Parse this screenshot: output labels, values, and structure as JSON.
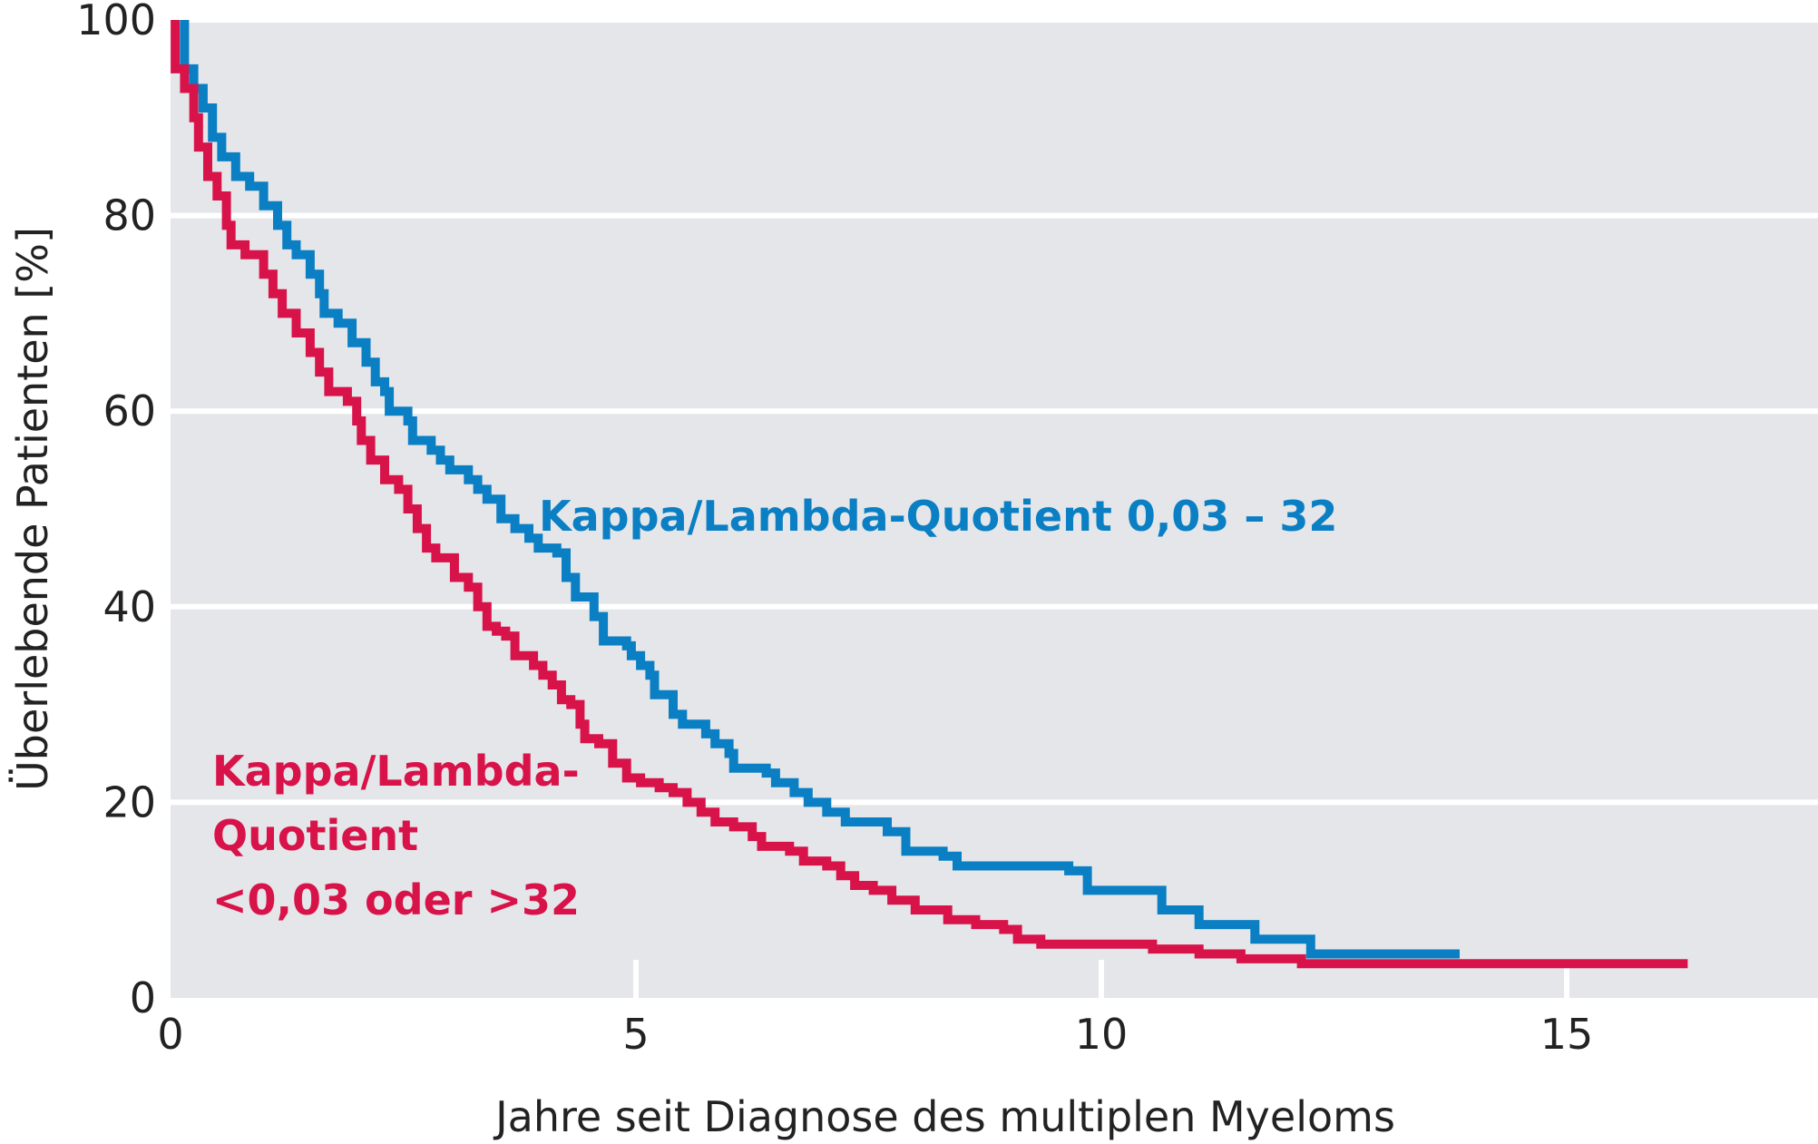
{
  "chart_data": {
    "type": "line",
    "step": true,
    "xlabel": "Jahre seit Diagnose des multiplen Myeloms",
    "ylabel": "Überlebende Patienten [%]",
    "xlim": [
      0,
      17.7
    ],
    "ylim": [
      0,
      100
    ],
    "xticks": [
      0,
      5,
      10,
      15
    ],
    "yticks": [
      0,
      20,
      40,
      60,
      80,
      100
    ],
    "grid": "horizontal",
    "background": "#e5e6e9",
    "series": [
      {
        "label_lines": [
          "Kappa/Lambda-Quotient 0,03 – 32"
        ],
        "color": "#0a7fc4",
        "points": [
          [
            0.15,
            95
          ],
          [
            0.25,
            93
          ],
          [
            0.35,
            91
          ],
          [
            0.45,
            88
          ],
          [
            0.55,
            86
          ],
          [
            0.7,
            84
          ],
          [
            0.85,
            83
          ],
          [
            1.0,
            81
          ],
          [
            1.15,
            79
          ],
          [
            1.25,
            77
          ],
          [
            1.35,
            76
          ],
          [
            1.5,
            74
          ],
          [
            1.6,
            72
          ],
          [
            1.65,
            70
          ],
          [
            1.8,
            69
          ],
          [
            1.95,
            67
          ],
          [
            2.1,
            65
          ],
          [
            2.2,
            63
          ],
          [
            2.3,
            62
          ],
          [
            2.35,
            60
          ],
          [
            2.55,
            59
          ],
          [
            2.6,
            57
          ],
          [
            2.8,
            56
          ],
          [
            2.9,
            55
          ],
          [
            3.0,
            54
          ],
          [
            3.2,
            53
          ],
          [
            3.3,
            52
          ],
          [
            3.4,
            51
          ],
          [
            3.55,
            49
          ],
          [
            3.7,
            48
          ],
          [
            3.85,
            47
          ],
          [
            3.95,
            46
          ],
          [
            4.15,
            45.5
          ],
          [
            4.25,
            43
          ],
          [
            4.35,
            41
          ],
          [
            4.55,
            39
          ],
          [
            4.65,
            36.5
          ],
          [
            4.9,
            36
          ],
          [
            4.95,
            35
          ],
          [
            5.05,
            34
          ],
          [
            5.15,
            33
          ],
          [
            5.2,
            31
          ],
          [
            5.4,
            29
          ],
          [
            5.5,
            28
          ],
          [
            5.75,
            27
          ],
          [
            5.85,
            26
          ],
          [
            6.0,
            25
          ],
          [
            6.05,
            23.5
          ],
          [
            6.4,
            23
          ],
          [
            6.5,
            22
          ],
          [
            6.7,
            21
          ],
          [
            6.85,
            20
          ],
          [
            7.05,
            19
          ],
          [
            7.25,
            18
          ],
          [
            7.7,
            17
          ],
          [
            7.9,
            15
          ],
          [
            8.3,
            14.5
          ],
          [
            8.45,
            13.5
          ],
          [
            9.65,
            13
          ],
          [
            9.85,
            11
          ],
          [
            10.65,
            9
          ],
          [
            11.05,
            7.5
          ],
          [
            11.65,
            6
          ],
          [
            12.25,
            4.5
          ],
          [
            13.85,
            4.5
          ]
        ]
      },
      {
        "label_lines": [
          "Kappa/Lambda-",
          "Quotient",
          "<0,03 oder >32"
        ],
        "color": "#d8134a",
        "points": [
          [
            0.05,
            95
          ],
          [
            0.15,
            93
          ],
          [
            0.25,
            90
          ],
          [
            0.3,
            87
          ],
          [
            0.4,
            84
          ],
          [
            0.5,
            82
          ],
          [
            0.6,
            79
          ],
          [
            0.65,
            77
          ],
          [
            0.8,
            76
          ],
          [
            1.0,
            74
          ],
          [
            1.1,
            72
          ],
          [
            1.2,
            70
          ],
          [
            1.35,
            68
          ],
          [
            1.5,
            66
          ],
          [
            1.6,
            64
          ],
          [
            1.7,
            62
          ],
          [
            1.9,
            61
          ],
          [
            2.0,
            59
          ],
          [
            2.05,
            57
          ],
          [
            2.15,
            55
          ],
          [
            2.3,
            53
          ],
          [
            2.45,
            52
          ],
          [
            2.55,
            50
          ],
          [
            2.65,
            48
          ],
          [
            2.75,
            46
          ],
          [
            2.85,
            45
          ],
          [
            3.05,
            43
          ],
          [
            3.2,
            42
          ],
          [
            3.3,
            40
          ],
          [
            3.4,
            38
          ],
          [
            3.5,
            37.5
          ],
          [
            3.6,
            37
          ],
          [
            3.7,
            35
          ],
          [
            3.9,
            34
          ],
          [
            4.0,
            33
          ],
          [
            4.1,
            32
          ],
          [
            4.2,
            30.5
          ],
          [
            4.3,
            30
          ],
          [
            4.4,
            28
          ],
          [
            4.45,
            26.5
          ],
          [
            4.6,
            26
          ],
          [
            4.75,
            24
          ],
          [
            4.9,
            22.5
          ],
          [
            5.05,
            22
          ],
          [
            5.25,
            21.5
          ],
          [
            5.4,
            21
          ],
          [
            5.55,
            20
          ],
          [
            5.7,
            19
          ],
          [
            5.85,
            18
          ],
          [
            6.05,
            17.5
          ],
          [
            6.25,
            16.5
          ],
          [
            6.35,
            15.5
          ],
          [
            6.65,
            15
          ],
          [
            6.8,
            14
          ],
          [
            7.05,
            13.5
          ],
          [
            7.2,
            12.5
          ],
          [
            7.35,
            11.5
          ],
          [
            7.55,
            11
          ],
          [
            7.75,
            10
          ],
          [
            8.0,
            9
          ],
          [
            8.35,
            8
          ],
          [
            8.65,
            7.5
          ],
          [
            8.95,
            7
          ],
          [
            9.1,
            6
          ],
          [
            9.35,
            5.5
          ],
          [
            10.55,
            5
          ],
          [
            11.05,
            4.5
          ],
          [
            11.5,
            4
          ],
          [
            12.15,
            3.5
          ],
          [
            13.0,
            3.5
          ],
          [
            16.3,
            3.5
          ]
        ]
      }
    ]
  }
}
